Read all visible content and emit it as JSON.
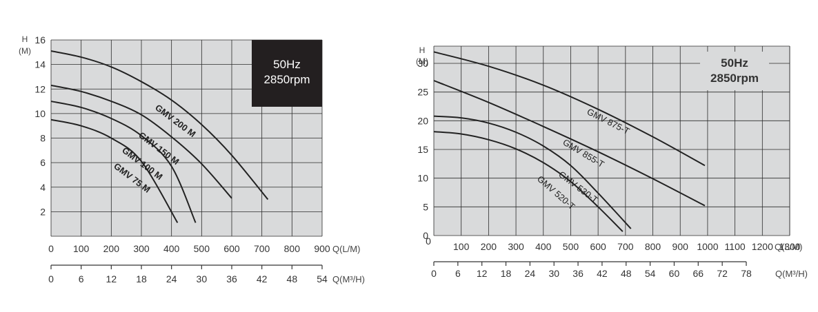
{
  "colors": {
    "plot_background": "#d9dadb",
    "grid": "#2a2a2a",
    "curve": "#222222",
    "badge_background": "#231f20",
    "badge_text": "#ffffff"
  },
  "chart_data": [
    {
      "type": "line",
      "y_axis_label_line1": "H",
      "y_axis_label_line2": "(M)",
      "ylim": [
        0,
        16
      ],
      "y_ticks": [
        "2",
        "4",
        "6",
        "8",
        "10",
        "12",
        "14",
        "16"
      ],
      "x_axis_label": "Q(L/M)",
      "xlim": [
        0,
        900
      ],
      "x_ticks": [
        "0",
        "100",
        "200",
        "300",
        "400",
        "500",
        "600",
        "700",
        "800",
        "900"
      ],
      "secondary_x_axis_label": "Q(M³/H)",
      "secondary_x_ticks": [
        "0",
        "6",
        "12",
        "18",
        "24",
        "30",
        "36",
        "42",
        "48",
        "54"
      ],
      "grid": true,
      "badge": {
        "line1": "50Hz",
        "line2": "2850rpm",
        "style": "dark box, top-right"
      },
      "series": [
        {
          "name": "GMV 200 M",
          "x": [
            0,
            100,
            200,
            300,
            400,
            500,
            600,
            720
          ],
          "y": [
            15.1,
            14.6,
            13.8,
            12.6,
            11.1,
            9.1,
            6.6,
            3.0
          ]
        },
        {
          "name": "GMV 150 M",
          "x": [
            0,
            100,
            200,
            300,
            400,
            500,
            600
          ],
          "y": [
            12.3,
            11.8,
            11.0,
            9.9,
            8.1,
            5.9,
            3.1
          ]
        },
        {
          "name": "GMV 100 M",
          "x": [
            0,
            100,
            200,
            300,
            400,
            480
          ],
          "y": [
            11.0,
            10.5,
            9.6,
            8.2,
            5.7,
            1.1
          ]
        },
        {
          "name": "GMV 75 M",
          "x": [
            0,
            100,
            200,
            300,
            420
          ],
          "y": [
            9.5,
            9.0,
            8.0,
            6.1,
            1.1
          ]
        }
      ]
    },
    {
      "type": "line",
      "y_axis_label_line1": "H",
      "y_axis_label_line2": "(M)",
      "ylim": [
        0,
        33
      ],
      "y_ticks": [
        "0",
        "5",
        "10",
        "15",
        "20",
        "25",
        "30"
      ],
      "x_axis_label": "Q(L/M)",
      "xlim": [
        0,
        1300
      ],
      "x_ticks": [
        "100",
        "200",
        "300",
        "400",
        "500",
        "600",
        "700",
        "800",
        "900",
        "1000",
        "1100",
        "1200",
        "1300"
      ],
      "secondary_x_axis_label": "Q(M³/H)",
      "secondary_x_ticks": [
        "0",
        "6",
        "12",
        "18",
        "24",
        "30",
        "36",
        "42",
        "48",
        "54",
        "60",
        "66",
        "72",
        "78"
      ],
      "grid": true,
      "badge": {
        "line1": "50Hz",
        "line2": "2850rpm",
        "style": "bold text, top-right"
      },
      "series": [
        {
          "name": "GMV 875-T",
          "x": [
            0,
            200,
            400,
            600,
            800,
            990
          ],
          "y": [
            32.0,
            29.5,
            26.2,
            22.0,
            17.2,
            12.2
          ]
        },
        {
          "name": "GMV 855-T",
          "x": [
            0,
            200,
            400,
            600,
            800,
            990
          ],
          "y": [
            27.0,
            23.2,
            19.0,
            14.6,
            9.9,
            5.2
          ]
        },
        {
          "name": "GMV 530-T",
          "x": [
            0,
            100,
            200,
            300,
            400,
            500,
            600,
            720
          ],
          "y": [
            20.8,
            20.5,
            19.6,
            18.0,
            15.6,
            12.2,
            7.4,
            1.2
          ]
        },
        {
          "name": "GMV 520-T",
          "x": [
            0,
            100,
            200,
            300,
            400,
            500,
            600,
            690
          ],
          "y": [
            18.1,
            17.7,
            16.7,
            15.1,
            12.7,
            9.4,
            5.0,
            0.7
          ]
        }
      ]
    }
  ]
}
